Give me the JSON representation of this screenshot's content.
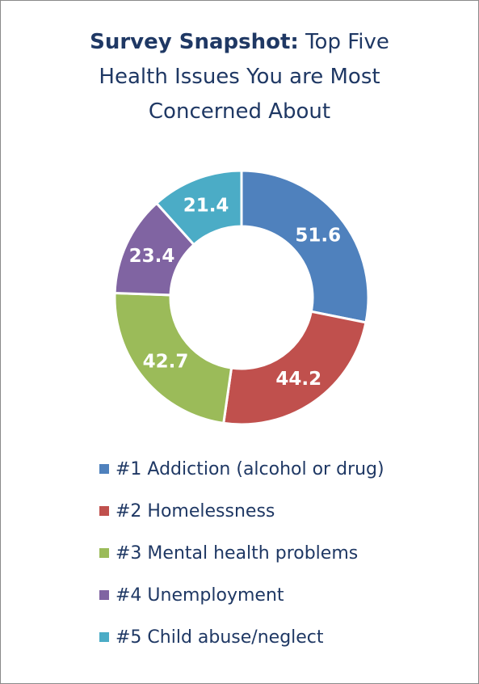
{
  "title": {
    "bold_part": "Survey Snapshot:",
    "rest_line1": "Top Five",
    "line2": "Health Issues You are Most",
    "line3": "Concerned About"
  },
  "chart_data": {
    "type": "pie",
    "categories": [
      "#1 Addiction (alcohol or drug)",
      "#2 Homelessness",
      "#3 Mental health problems",
      "#4 Unemployment",
      "#5 Child abuse/neglect"
    ],
    "values": [
      51.6,
      44.2,
      42.7,
      23.4,
      21.4
    ],
    "colors": [
      "#4f81bd",
      "#c0504d",
      "#9bbb59",
      "#8064a2",
      "#4bacc6"
    ],
    "data_label_color": "#ffffff",
    "donut": true,
    "legend_position": "bottom"
  }
}
